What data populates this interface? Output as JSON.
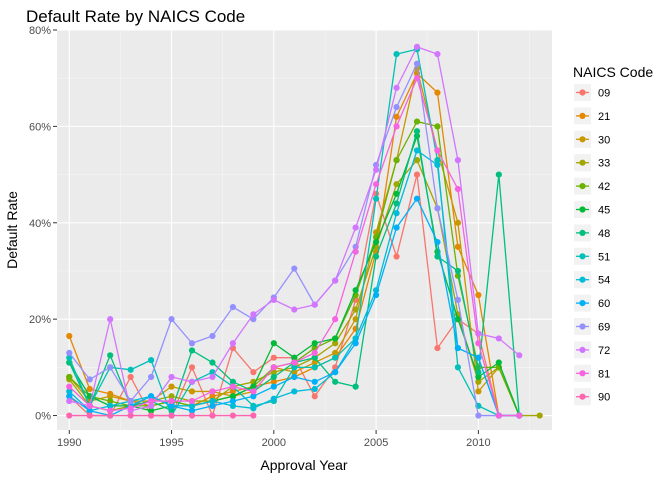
{
  "chart_data": {
    "type": "line",
    "title": "Default Rate by NAICS Code",
    "xlabel": "Approval Year",
    "ylabel": "Default Rate",
    "xlim": [
      1989.4,
      2013.6
    ],
    "ylim": [
      -0.03,
      0.8
    ],
    "x_ticks": [
      1990,
      1995,
      2000,
      2005,
      2010
    ],
    "x_tick_labels": [
      "1990",
      "1995",
      "2000",
      "2005",
      "2010"
    ],
    "y_ticks": [
      0,
      0.2,
      0.4,
      0.6,
      0.8
    ],
    "y_tick_labels": [
      "0%",
      "20%",
      "40%",
      "60%",
      "80%"
    ],
    "grid": true,
    "legend_title": "NAICS Code",
    "legend_position": "right",
    "series": [
      {
        "name": "09",
        "color": "#F8766D",
        "x": [
          1990,
          1991,
          1992,
          1993,
          1994,
          1995,
          1996,
          1997,
          1998,
          1999,
          2000,
          2001,
          2002,
          2003,
          2004,
          2005,
          2006,
          2007,
          2008,
          2009,
          2010,
          2011,
          2012
        ],
        "y": [
          0.04,
          0.0,
          0.0,
          0.08,
          0.0,
          0.0,
          0.1,
          0.0,
          0.14,
          0.09,
          0.12,
          0.12,
          0.04,
          0.1,
          0.24,
          0.46,
          0.33,
          0.5,
          0.14,
          0.2,
          0.17,
          0.0,
          0.0
        ]
      },
      {
        "name": "21",
        "color": "#E58700",
        "x": [
          1990,
          1991,
          1992,
          1993,
          1994,
          1995,
          1996,
          1997,
          1998,
          1999,
          2000,
          2001,
          2002,
          2003,
          2004,
          2005,
          2006,
          2007,
          2008,
          2009,
          2010,
          2011,
          2012
        ],
        "y": [
          0.165,
          0.055,
          0.045,
          0.03,
          0.02,
          0.03,
          0.02,
          0.04,
          0.05,
          0.06,
          0.07,
          0.08,
          0.1,
          0.12,
          0.18,
          0.34,
          0.62,
          0.71,
          0.67,
          0.35,
          0.25,
          0.0,
          0.0
        ]
      },
      {
        "name": "30",
        "color": "#C99800",
        "x": [
          1990,
          1991,
          1992,
          1993,
          1994,
          1995,
          1996,
          1997,
          1998,
          1999,
          2000,
          2001,
          2002,
          2003,
          2004,
          2005,
          2006,
          2007,
          2008,
          2009,
          2010,
          2011,
          2012
        ],
        "y": [
          0.08,
          0.03,
          0.04,
          0.03,
          0.03,
          0.06,
          0.05,
          0.05,
          0.04,
          0.05,
          0.1,
          0.09,
          0.11,
          0.13,
          0.2,
          0.38,
          0.53,
          0.72,
          0.55,
          0.4,
          0.05,
          0.1,
          0.0
        ]
      },
      {
        "name": "33",
        "color": "#A3A500",
        "x": [
          1990,
          1991,
          1992,
          1993,
          1994,
          1995,
          1996,
          1997,
          1998,
          1999,
          2000,
          2001,
          2002,
          2003,
          2004,
          2005,
          2006,
          2007,
          2008,
          2009,
          2010,
          2011,
          2012,
          2013
        ],
        "y": [
          0.075,
          0.02,
          0.01,
          0.02,
          0.03,
          0.04,
          0.03,
          0.03,
          0.06,
          0.07,
          0.09,
          0.1,
          0.12,
          0.15,
          0.22,
          0.35,
          0.48,
          0.53,
          0.43,
          0.21,
          0.07,
          0.1,
          0.0,
          0.0
        ]
      },
      {
        "name": "42",
        "color": "#6BB100",
        "x": [
          1990,
          1991,
          1992,
          1993,
          1994,
          1995,
          1996,
          1997,
          1998,
          1999,
          2000,
          2001,
          2002,
          2003,
          2004,
          2005,
          2006,
          2007,
          2008,
          2009,
          2010,
          2011,
          2012
        ],
        "y": [
          0.08,
          0.04,
          0.03,
          0.02,
          0.02,
          0.03,
          0.02,
          0.03,
          0.04,
          0.06,
          0.1,
          0.11,
          0.14,
          0.16,
          0.25,
          0.37,
          0.53,
          0.61,
          0.6,
          0.29,
          0.1,
          0.1,
          0.0
        ]
      },
      {
        "name": "45",
        "color": "#00BA38",
        "x": [
          1990,
          1991,
          1992,
          1993,
          1994,
          1995,
          1996,
          1997,
          1998,
          1999,
          2000,
          2001,
          2002,
          2003,
          2004,
          2005,
          2006,
          2007,
          2008,
          2009,
          2010,
          2011,
          2012
        ],
        "y": [
          0.11,
          0.04,
          0.02,
          0.02,
          0.01,
          0.02,
          0.02,
          0.03,
          0.04,
          0.06,
          0.15,
          0.12,
          0.15,
          0.16,
          0.26,
          0.36,
          0.46,
          0.58,
          0.34,
          0.2,
          0.08,
          0.11,
          0.0
        ]
      },
      {
        "name": "48",
        "color": "#00BF7D",
        "x": [
          1990,
          1991,
          1992,
          1993,
          1994,
          1995,
          1996,
          1997,
          1998,
          1999,
          2000,
          2001,
          2002,
          2003,
          2004,
          2005,
          2006,
          2007,
          2008,
          2009,
          2010,
          2011,
          2012
        ],
        "y": [
          0.11,
          0.02,
          0.125,
          0.02,
          0.03,
          0.01,
          0.135,
          0.11,
          0.07,
          0.05,
          0.08,
          0.11,
          0.12,
          0.07,
          0.06,
          0.33,
          0.44,
          0.59,
          0.33,
          0.3,
          0.09,
          0.5,
          0.0
        ]
      },
      {
        "name": "51",
        "color": "#00C0B8",
        "x": [
          1990,
          1991,
          1992,
          1993,
          1994,
          1995,
          1996,
          1997,
          1998,
          1999,
          2000,
          2001,
          2002,
          2003,
          2004,
          2005,
          2006,
          2007,
          2008,
          2009,
          2010,
          2011,
          2012
        ],
        "y": [
          0.12,
          0.02,
          0.1,
          0.095,
          0.115,
          0.0,
          0.07,
          0.09,
          0.06,
          0.02,
          0.03,
          0.1,
          0.1,
          0.12,
          0.16,
          0.45,
          0.75,
          0.76,
          0.53,
          0.1,
          0.02,
          0.0,
          0.0
        ]
      },
      {
        "name": "54",
        "color": "#00BCD8",
        "x": [
          1990,
          1991,
          1992,
          1993,
          1994,
          1995,
          1996,
          1997,
          1998,
          1999,
          2000,
          2001,
          2002,
          2003,
          2004,
          2005,
          2006,
          2007,
          2008,
          2009,
          2010,
          2011,
          2012
        ],
        "y": [
          0.05,
          0.01,
          0.02,
          0.03,
          0.04,
          0.02,
          0.02,
          0.03,
          0.02,
          0.015,
          0.035,
          0.05,
          0.055,
          0.09,
          0.16,
          0.26,
          0.42,
          0.55,
          0.52,
          0.14,
          0.12,
          0.0,
          0.0
        ]
      },
      {
        "name": "60",
        "color": "#00B0F6",
        "x": [
          1990,
          1991,
          1992,
          1993,
          1994,
          1995,
          1996,
          1997,
          1998,
          1999,
          2000,
          2001,
          2002,
          2003,
          2004,
          2005,
          2006,
          2007,
          2008,
          2009,
          2010,
          2011,
          2012
        ],
        "y": [
          0.04,
          0.01,
          0.0,
          0.02,
          0.04,
          0.02,
          0.01,
          0.02,
          0.03,
          0.04,
          0.06,
          0.08,
          0.07,
          0.09,
          0.15,
          0.25,
          0.39,
          0.45,
          0.36,
          0.14,
          0.12,
          0.0,
          0.0
        ]
      },
      {
        "name": "69",
        "color": "#9590FF",
        "x": [
          1990,
          1991,
          1992,
          1993,
          1994,
          1995,
          1996,
          1997,
          1998,
          1999,
          2000,
          2001,
          2002,
          2003,
          2004,
          2005,
          2006,
          2007,
          2008,
          2009,
          2010,
          2011,
          2012
        ],
        "y": [
          0.13,
          0.075,
          0.1,
          0.03,
          0.08,
          0.2,
          0.15,
          0.165,
          0.225,
          0.2,
          0.245,
          0.305,
          0.23,
          0.28,
          0.35,
          0.52,
          0.64,
          0.73,
          0.43,
          0.24,
          0.0,
          0.0,
          0.0
        ]
      },
      {
        "name": "72",
        "color": "#D376FF",
        "x": [
          1990,
          1991,
          1992,
          1993,
          1994,
          1995,
          1996,
          1997,
          1998,
          1999,
          2000,
          2001,
          2002,
          2003,
          2004,
          2005,
          2006,
          2007,
          2008,
          2009,
          2010,
          2011,
          2012
        ],
        "y": [
          0.03,
          0.02,
          0.2,
          0.01,
          0.02,
          0.08,
          0.07,
          0.08,
          0.15,
          0.21,
          0.24,
          0.22,
          0.23,
          0.28,
          0.39,
          0.51,
          0.68,
          0.765,
          0.75,
          0.53,
          0.17,
          0.16,
          0.125
        ]
      },
      {
        "name": "81",
        "color": "#F763E0",
        "x": [
          1990,
          1991,
          1992,
          1993,
          1994,
          1995,
          1996,
          1997,
          1998,
          1999,
          2000,
          2001,
          2002,
          2003,
          2004,
          2005,
          2006,
          2007,
          2008,
          2009,
          2010,
          2011,
          2012
        ],
        "y": [
          0.06,
          0.02,
          0.01,
          0.015,
          0.03,
          0.03,
          0.03,
          0.05,
          0.06,
          0.05,
          0.1,
          0.11,
          0.13,
          0.2,
          0.34,
          0.48,
          0.6,
          0.7,
          0.55,
          0.47,
          0.15,
          0.0,
          0.0
        ]
      },
      {
        "name": "90",
        "color": "#FF64B0",
        "x": [
          1990,
          1991,
          1992,
          1993,
          1994,
          1995,
          1996,
          1997,
          1998,
          1999
        ],
        "y": [
          0.0,
          0.0,
          0.0,
          0.0,
          0.0,
          0.0,
          0.0,
          0.0,
          0.0,
          0.0
        ]
      }
    ]
  }
}
